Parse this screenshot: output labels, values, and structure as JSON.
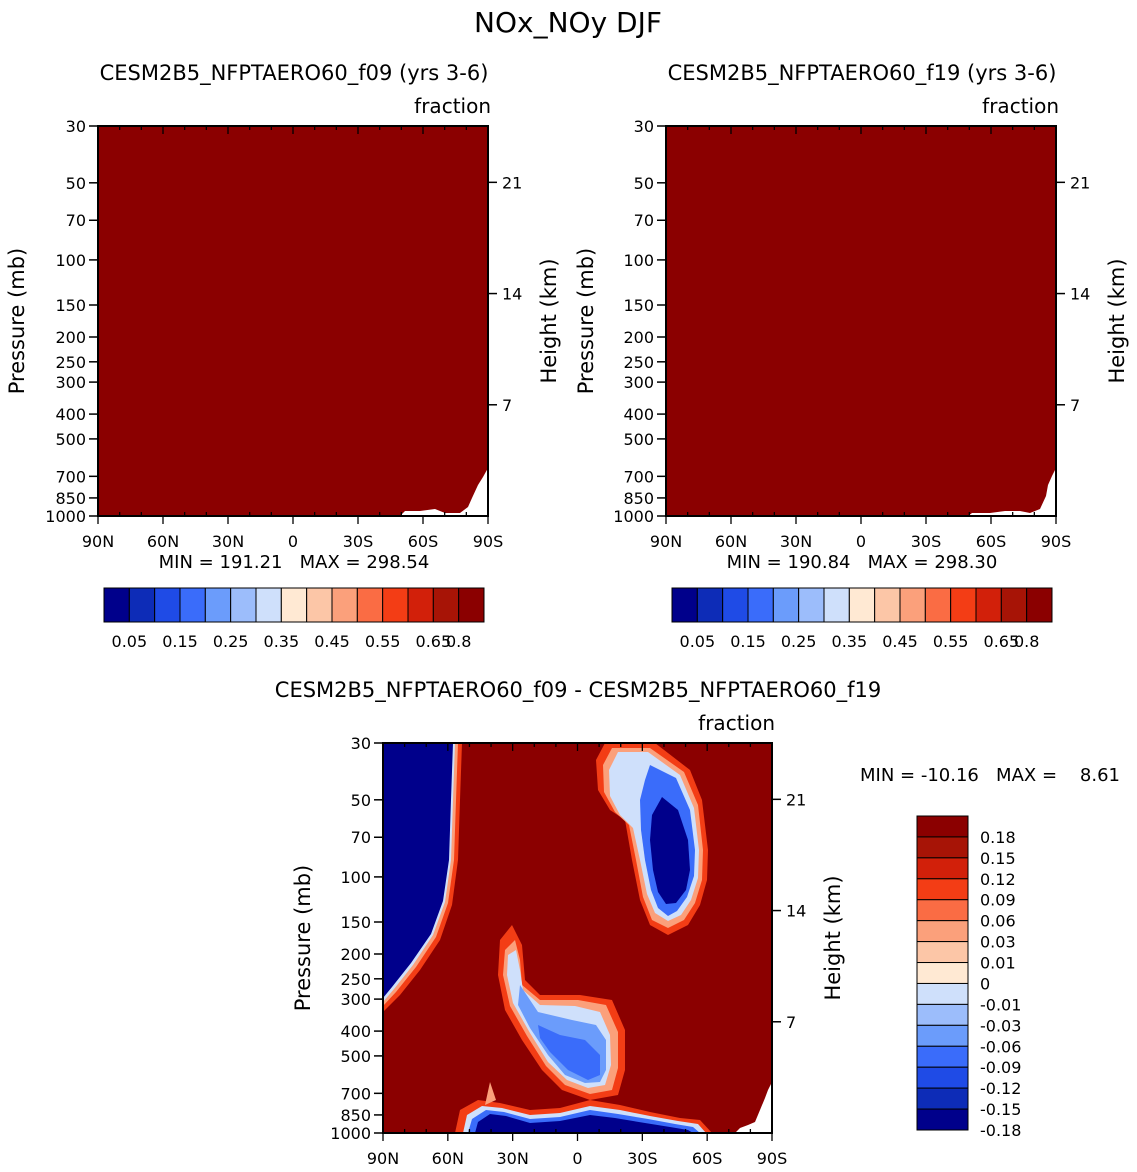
{
  "page": {
    "title": "NOx_NOy DJF"
  },
  "colors": {
    "palette_13": [
      "#00008b",
      "#0d2cb7",
      "#1f4be6",
      "#3a6cfa",
      "#6b9cfb",
      "#9cbdfb",
      "#cfe0fb",
      "#ffe9d3",
      "#fcc6a7",
      "#fba07b",
      "#fa6c44",
      "#f33d15",
      "#d2200a",
      "#a71406",
      "#8b0000"
    ],
    "palette_diff": [
      "#00008b",
      "#0d2cb7",
      "#1f4be6",
      "#3a6cfa",
      "#6b9cfb",
      "#9cbdfb",
      "#cfe0fb",
      "#ffe9d3",
      "#fcc6a7",
      "#fba07b",
      "#fa6c44",
      "#f33d15",
      "#d2200a",
      "#a71406",
      "#8b0000"
    ]
  },
  "chart_data": [
    {
      "id": "panel-f09",
      "type": "heatmap",
      "title": "CESM2B5_NFPTAERO60_f09 (yrs 3-6)",
      "units": "fraction",
      "ylabel": "Pressure (mb)",
      "ylabel_right": "Height (km)",
      "x_ticks": [
        "90N",
        "60N",
        "30N",
        "0",
        "30S",
        "60S",
        "90S"
      ],
      "y_ticks": [
        30,
        50,
        70,
        100,
        150,
        200,
        250,
        300,
        400,
        500,
        700,
        850,
        1000
      ],
      "y_ticks_right": [
        21,
        14,
        7
      ],
      "min_max": "MIN = 191.21   MAX = 298.54",
      "fill": "uniform maximum value (>0.8) everywhere except bottom-right corner (60S-90S below 700 mb)",
      "colorbar_labels": [
        "0.05",
        "0.15",
        "0.25",
        "0.35",
        "0.45",
        "0.55",
        "0.65",
        "0.8"
      ]
    },
    {
      "id": "panel-f19",
      "type": "heatmap",
      "title": "CESM2B5_NFPTAERO60_f19 (yrs 3-6)",
      "units": "fraction",
      "ylabel": "Pressure (mb)",
      "ylabel_right": "Height (km)",
      "x_ticks": [
        "90N",
        "60N",
        "30N",
        "0",
        "30S",
        "60S",
        "90S"
      ],
      "y_ticks": [
        30,
        50,
        70,
        100,
        150,
        200,
        250,
        300,
        400,
        500,
        700,
        850,
        1000
      ],
      "y_ticks_right": [
        21,
        14,
        7
      ],
      "min_max": "MIN = 190.84   MAX = 298.30",
      "fill": "uniform maximum value (>0.8) everywhere except bottom-right corner (60S-90S below 700 mb)",
      "colorbar_labels": [
        "0.05",
        "0.15",
        "0.25",
        "0.35",
        "0.45",
        "0.55",
        "0.65",
        "0.8"
      ]
    },
    {
      "id": "panel-diff",
      "type": "heatmap",
      "title": "CESM2B5_NFPTAERO60_f09 - CESM2B5_NFPTAERO60_f19",
      "units": "fraction",
      "ylabel": "Pressure (mb)",
      "ylabel_right": "Height (km)",
      "x_ticks": [
        "90N",
        "60N",
        "30N",
        "0",
        "30S",
        "60S",
        "90S"
      ],
      "y_ticks": [
        30,
        50,
        70,
        100,
        150,
        200,
        250,
        300,
        400,
        500,
        700,
        850,
        1000
      ],
      "y_ticks_right": [
        21,
        14,
        7
      ],
      "min_max": "MIN = -10.16   MAX =    8.61",
      "colorbar_labels": [
        "0.18",
        "0.15",
        "0.12",
        "0.09",
        "0.06",
        "0.03",
        "0.01",
        "0",
        "-0.01",
        "-0.03",
        "-0.06",
        "-0.09",
        "-0.12",
        "-0.15",
        "-0.18"
      ],
      "features": [
        {
          "name": "strong negative region",
          "lat_range": [
            "90N",
            "57N"
          ],
          "p_range": [
            30,
            330
          ],
          "level": "< -0.18"
        },
        {
          "name": "negative oval",
          "lat_range": [
            "30S",
            "60S"
          ],
          "p_range": [
            45,
            160
          ],
          "level": "< -0.18"
        },
        {
          "name": "negative tongue",
          "lat_range": [
            "40N",
            "20S"
          ],
          "p_range": [
            200,
            650
          ],
          "level": "-0.01 to -0.12"
        },
        {
          "name": "negative near-surface band",
          "lat_range": [
            "50N",
            "60S"
          ],
          "p_range": [
            850,
            1000
          ],
          "level": "< -0.18"
        }
      ]
    }
  ]
}
